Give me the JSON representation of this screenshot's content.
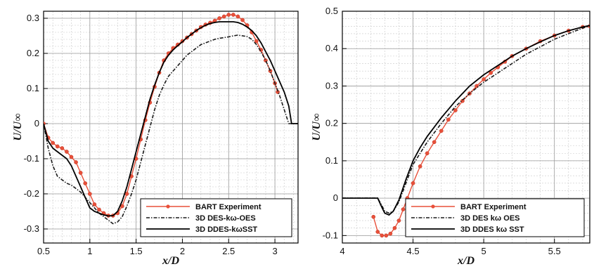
{
  "chart_data": [
    {
      "type": "line",
      "xlabel": "x/D",
      "ylabel": "U/U∞",
      "xlim": [
        0.5,
        3.25
      ],
      "ylim": [
        -0.34,
        0.32
      ],
      "xticks": [
        0.5,
        1,
        1.5,
        2,
        2.5,
        3
      ],
      "xtick_labels": [
        "0.5",
        "1",
        "1.5",
        "2",
        "2.5",
        "3"
      ],
      "yticks": [
        -0.3,
        -0.2,
        -0.1,
        0,
        0.1,
        0.2,
        0.3
      ],
      "ytick_labels": [
        "-0.3",
        "-0.2",
        "-0.1",
        "0",
        "0.1",
        "0.2",
        "0.3"
      ],
      "grid": true,
      "legend_position": "bottom-right",
      "series": [
        {
          "name": "BART Experiment",
          "style": "red-markers",
          "color": "#e8503a",
          "x": [
            0.5,
            0.55,
            0.6,
            0.65,
            0.7,
            0.75,
            0.8,
            0.85,
            0.9,
            0.95,
            1.0,
            1.05,
            1.1,
            1.15,
            1.2,
            1.25,
            1.3,
            1.35,
            1.4,
            1.45,
            1.5,
            1.55,
            1.6,
            1.65,
            1.7,
            1.75,
            1.8,
            1.85,
            1.9,
            1.95,
            2.0,
            2.05,
            2.1,
            2.15,
            2.2,
            2.25,
            2.3,
            2.35,
            2.4,
            2.45,
            2.5,
            2.55,
            2.6,
            2.65,
            2.7,
            2.75,
            2.8,
            2.85,
            2.9,
            2.95,
            3.0,
            3.03
          ],
          "y": [
            0.0,
            -0.04,
            -0.055,
            -0.065,
            -0.07,
            -0.08,
            -0.095,
            -0.11,
            -0.14,
            -0.17,
            -0.2,
            -0.23,
            -0.245,
            -0.255,
            -0.262,
            -0.262,
            -0.255,
            -0.235,
            -0.2,
            -0.15,
            -0.1,
            -0.045,
            0.01,
            0.06,
            0.105,
            0.145,
            0.18,
            0.2,
            0.215,
            0.225,
            0.235,
            0.245,
            0.255,
            0.265,
            0.275,
            0.282,
            0.287,
            0.293,
            0.3,
            0.305,
            0.31,
            0.31,
            0.305,
            0.295,
            0.28,
            0.26,
            0.235,
            0.21,
            0.18,
            0.15,
            0.115,
            0.09
          ]
        },
        {
          "name": "3D DES-kω-OES",
          "style": "dash-dot",
          "color": "#1a1a1a",
          "x": [
            0.5,
            0.55,
            0.6,
            0.65,
            0.7,
            0.75,
            0.8,
            0.85,
            0.9,
            0.95,
            1.0,
            1.05,
            1.1,
            1.15,
            1.2,
            1.25,
            1.3,
            1.35,
            1.4,
            1.45,
            1.5,
            1.55,
            1.6,
            1.65,
            1.7,
            1.75,
            1.8,
            1.85,
            1.9,
            1.95,
            2.0,
            2.05,
            2.1,
            2.15,
            2.2,
            2.25,
            2.3,
            2.35,
            2.4,
            2.45,
            2.5,
            2.55,
            2.6,
            2.65,
            2.7,
            2.75,
            2.8,
            2.85,
            2.9,
            2.95,
            3.0,
            3.05,
            3.1,
            3.15,
            3.2,
            3.25
          ],
          "y": [
            0.0,
            -0.07,
            -0.12,
            -0.15,
            -0.16,
            -0.17,
            -0.175,
            -0.185,
            -0.195,
            -0.21,
            -0.225,
            -0.24,
            -0.255,
            -0.265,
            -0.275,
            -0.285,
            -0.28,
            -0.265,
            -0.235,
            -0.2,
            -0.16,
            -0.11,
            -0.06,
            -0.01,
            0.04,
            0.08,
            0.11,
            0.135,
            0.15,
            0.165,
            0.18,
            0.195,
            0.205,
            0.215,
            0.225,
            0.23,
            0.235,
            0.24,
            0.243,
            0.245,
            0.247,
            0.25,
            0.252,
            0.25,
            0.248,
            0.24,
            0.225,
            0.205,
            0.18,
            0.15,
            0.115,
            0.08,
            0.04,
            0.0,
            0.0,
            0.0
          ]
        },
        {
          "name": "3D DDES-kωSST",
          "style": "solid",
          "color": "#000000",
          "x": [
            0.5,
            0.55,
            0.6,
            0.65,
            0.7,
            0.75,
            0.8,
            0.85,
            0.9,
            0.95,
            1.0,
            1.05,
            1.1,
            1.15,
            1.2,
            1.25,
            1.3,
            1.35,
            1.4,
            1.45,
            1.5,
            1.55,
            1.6,
            1.65,
            1.7,
            1.75,
            1.8,
            1.85,
            1.9,
            1.95,
            2.0,
            2.05,
            2.1,
            2.15,
            2.2,
            2.25,
            2.3,
            2.35,
            2.4,
            2.45,
            2.5,
            2.55,
            2.6,
            2.65,
            2.7,
            2.75,
            2.8,
            2.85,
            2.9,
            2.95,
            3.0,
            3.05,
            3.1,
            3.15,
            3.18,
            3.22,
            3.25
          ],
          "y": [
            0.0,
            -0.05,
            -0.07,
            -0.08,
            -0.09,
            -0.1,
            -0.12,
            -0.15,
            -0.18,
            -0.21,
            -0.24,
            -0.25,
            -0.255,
            -0.26,
            -0.263,
            -0.262,
            -0.25,
            -0.22,
            -0.18,
            -0.13,
            -0.08,
            -0.03,
            0.02,
            0.07,
            0.11,
            0.145,
            0.175,
            0.195,
            0.21,
            0.222,
            0.233,
            0.245,
            0.255,
            0.265,
            0.273,
            0.28,
            0.285,
            0.288,
            0.29,
            0.29,
            0.29,
            0.29,
            0.288,
            0.283,
            0.275,
            0.265,
            0.25,
            0.23,
            0.205,
            0.18,
            0.15,
            0.12,
            0.09,
            0.05,
            0.0,
            0.0,
            0.0
          ]
        }
      ]
    },
    {
      "type": "line",
      "xlabel": "x/D",
      "ylabel": "U/U∞",
      "xlim": [
        4.0,
        5.75
      ],
      "ylim": [
        -0.12,
        0.5
      ],
      "xticks": [
        4,
        4.5,
        5,
        5.5
      ],
      "xtick_labels": [
        "4",
        "4.5",
        "5",
        "5.5"
      ],
      "yticks": [
        -0.1,
        0,
        0.1,
        0.2,
        0.3,
        0.4,
        0.5
      ],
      "ytick_labels": [
        "-0.1",
        "0",
        "0.1",
        "0.2",
        "0.3",
        "0.4",
        "0.5"
      ],
      "grid": true,
      "legend_position": "bottom-right",
      "series": [
        {
          "name": "BART Experiment",
          "style": "red-markers",
          "color": "#e8503a",
          "x": [
            4.22,
            4.25,
            4.28,
            4.31,
            4.34,
            4.37,
            4.4,
            4.43,
            4.46,
            4.5,
            4.55,
            4.6,
            4.65,
            4.7,
            4.75,
            4.8,
            4.85,
            4.9,
            4.95,
            5.0,
            5.05,
            5.1,
            5.15,
            5.2,
            5.3,
            5.4,
            5.5,
            5.6,
            5.7,
            5.75
          ],
          "y": [
            -0.05,
            -0.09,
            -0.1,
            -0.1,
            -0.095,
            -0.08,
            -0.06,
            -0.03,
            0.0,
            0.04,
            0.085,
            0.12,
            0.15,
            0.18,
            0.21,
            0.235,
            0.26,
            0.28,
            0.3,
            0.318,
            0.335,
            0.35,
            0.365,
            0.38,
            0.4,
            0.42,
            0.435,
            0.448,
            0.458,
            0.46
          ]
        },
        {
          "name": "3D DES kω OES",
          "style": "dash-dot",
          "color": "#1a1a1a",
          "x": [
            4.0,
            4.1,
            4.2,
            4.25,
            4.28,
            4.3,
            4.33,
            4.36,
            4.4,
            4.45,
            4.5,
            4.55,
            4.6,
            4.7,
            4.8,
            4.9,
            5.0,
            5.1,
            5.2,
            5.3,
            5.4,
            5.5,
            5.6,
            5.7,
            5.75
          ],
          "y": [
            0.0,
            0.0,
            0.0,
            0.0,
            -0.02,
            -0.035,
            -0.04,
            -0.035,
            -0.01,
            0.04,
            0.09,
            0.12,
            0.15,
            0.2,
            0.245,
            0.28,
            0.31,
            0.335,
            0.36,
            0.385,
            0.405,
            0.425,
            0.44,
            0.455,
            0.46
          ]
        },
        {
          "name": "3D DDES kω SST",
          "style": "solid",
          "color": "#000000",
          "x": [
            4.0,
            4.1,
            4.2,
            4.25,
            4.28,
            4.3,
            4.33,
            4.36,
            4.4,
            4.45,
            4.5,
            4.55,
            4.6,
            4.7,
            4.8,
            4.9,
            5.0,
            5.1,
            5.2,
            5.3,
            5.4,
            5.5,
            5.6,
            5.7,
            5.75
          ],
          "y": [
            0.0,
            0.0,
            0.0,
            0.0,
            -0.025,
            -0.04,
            -0.045,
            -0.035,
            -0.005,
            0.05,
            0.1,
            0.135,
            0.165,
            0.215,
            0.26,
            0.3,
            0.33,
            0.355,
            0.38,
            0.4,
            0.418,
            0.435,
            0.448,
            0.458,
            0.462
          ]
        }
      ]
    }
  ]
}
